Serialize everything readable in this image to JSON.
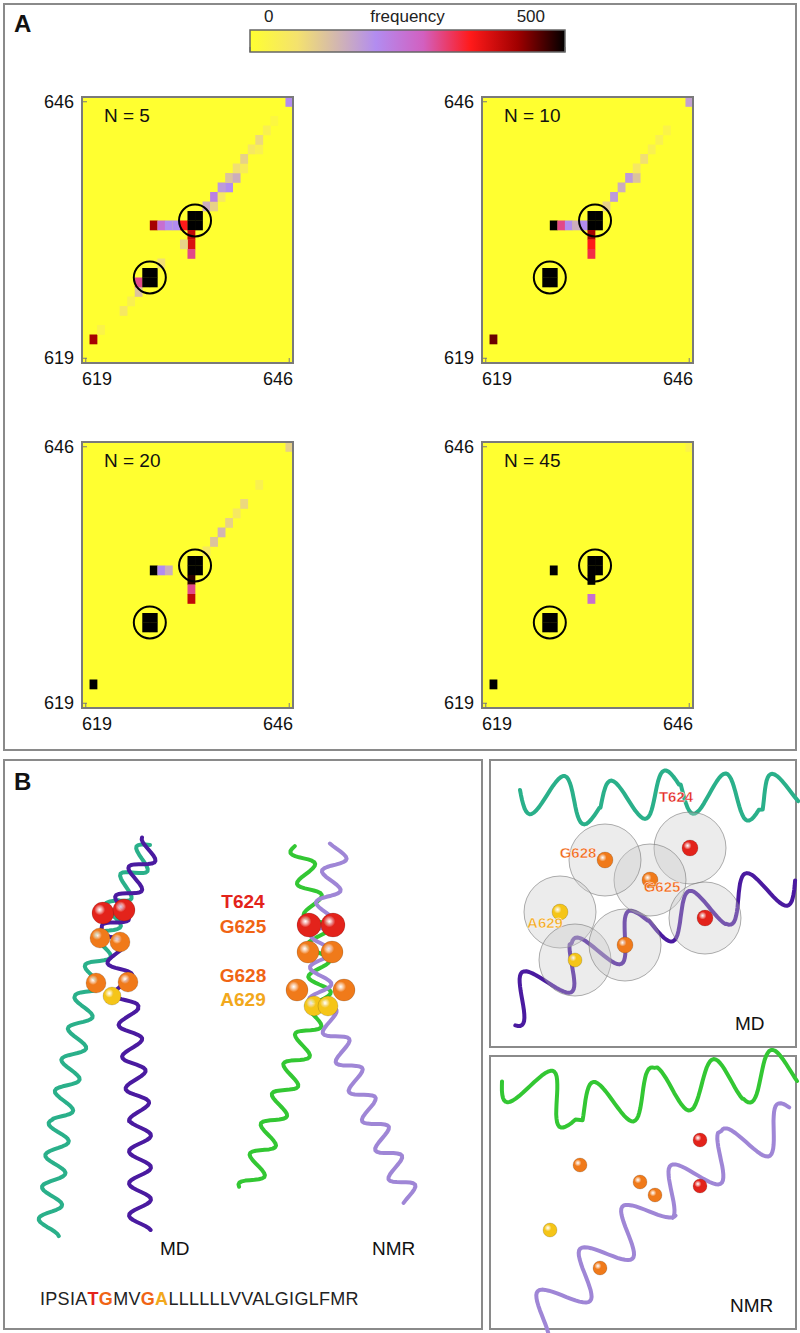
{
  "panel_labels": [
    "A",
    "B"
  ],
  "color_bar": {
    "label": "frequency",
    "range": [
      0,
      500
    ],
    "ticks": [
      0,
      500
    ]
  },
  "chart_data": [
    {
      "type": "heatmap",
      "title": "N = 5",
      "xlim": [
        618.5,
        646.5
      ],
      "ylim": [
        618.5,
        646.5
      ],
      "xticks": [
        619,
        646
      ],
      "yticks": [
        619,
        646
      ],
      "cells": [
        [
          620,
          621,
          420
        ],
        [
          621,
          622,
          30
        ],
        [
          624,
          624,
          60
        ],
        [
          625,
          625,
          40
        ],
        [
          626,
          626,
          120
        ],
        [
          626,
          627,
          300
        ],
        [
          627,
          627,
          500
        ],
        [
          628,
          627,
          500
        ],
        [
          627,
          628,
          500
        ],
        [
          628,
          628,
          500
        ],
        [
          629,
          629,
          80
        ],
        [
          628,
          633,
          420
        ],
        [
          629,
          633,
          250
        ],
        [
          630,
          633,
          200
        ],
        [
          631,
          633,
          200
        ],
        [
          632,
          633,
          350
        ],
        [
          633,
          633,
          500
        ],
        [
          634,
          633,
          500
        ],
        [
          633,
          634,
          500
        ],
        [
          634,
          634,
          500
        ],
        [
          633,
          632,
          400
        ],
        [
          633,
          631,
          380
        ],
        [
          633,
          630,
          300
        ],
        [
          632,
          631,
          100
        ],
        [
          635,
          635,
          150
        ],
        [
          636,
          635,
          100
        ],
        [
          636,
          636,
          220
        ],
        [
          637,
          636,
          60
        ],
        [
          637,
          637,
          180
        ],
        [
          638,
          637,
          200
        ],
        [
          638,
          638,
          120
        ],
        [
          639,
          638,
          150
        ],
        [
          639,
          639,
          80
        ],
        [
          640,
          639,
          50
        ],
        [
          640,
          640,
          100
        ],
        [
          641,
          641,
          60
        ],
        [
          642,
          641,
          40
        ],
        [
          642,
          642,
          90
        ],
        [
          643,
          643,
          40
        ],
        [
          644,
          644,
          20
        ],
        [
          646,
          646,
          200
        ]
      ],
      "circled_contacts": [
        [
          627.5,
          627.5
        ],
        [
          633.5,
          633.5
        ]
      ]
    },
    {
      "type": "heatmap",
      "title": "N = 10",
      "xlim": [
        618.5,
        646.5
      ],
      "ylim": [
        618.5,
        646.5
      ],
      "xticks": [
        619,
        646
      ],
      "yticks": [
        619,
        646
      ],
      "cells": [
        [
          620,
          621,
          450
        ],
        [
          627,
          627,
          500
        ],
        [
          628,
          627,
          500
        ],
        [
          627,
          628,
          500
        ],
        [
          628,
          628,
          500
        ],
        [
          628,
          633,
          500
        ],
        [
          629,
          633,
          300
        ],
        [
          630,
          633,
          200
        ],
        [
          631,
          633,
          150
        ],
        [
          632,
          633,
          200
        ],
        [
          633,
          633,
          500
        ],
        [
          634,
          633,
          500
        ],
        [
          633,
          634,
          500
        ],
        [
          634,
          634,
          500
        ],
        [
          633,
          632,
          420
        ],
        [
          633,
          631,
          350
        ],
        [
          633,
          630,
          330
        ],
        [
          635,
          635,
          100
        ],
        [
          636,
          636,
          180
        ],
        [
          637,
          637,
          150
        ],
        [
          638,
          638,
          180
        ],
        [
          639,
          638,
          120
        ],
        [
          639,
          639,
          60
        ],
        [
          640,
          640,
          80
        ],
        [
          641,
          641,
          40
        ],
        [
          642,
          642,
          40
        ],
        [
          643,
          643,
          30
        ],
        [
          646,
          646,
          170
        ]
      ],
      "circled_contacts": [
        [
          627.5,
          627.5
        ],
        [
          633.5,
          633.5
        ]
      ]
    },
    {
      "type": "heatmap",
      "title": "N = 20",
      "xlim": [
        618.5,
        646.5
      ],
      "ylim": [
        618.5,
        646.5
      ],
      "xticks": [
        619,
        646
      ],
      "yticks": [
        619,
        646
      ],
      "cells": [
        [
          620,
          621,
          500
        ],
        [
          627,
          627,
          500
        ],
        [
          628,
          627,
          500
        ],
        [
          627,
          628,
          500
        ],
        [
          628,
          628,
          500
        ],
        [
          628,
          633,
          500
        ],
        [
          629,
          633,
          200
        ],
        [
          630,
          633,
          150
        ],
        [
          633,
          633,
          500
        ],
        [
          634,
          633,
          500
        ],
        [
          633,
          634,
          500
        ],
        [
          634,
          634,
          500
        ],
        [
          633,
          632,
          480
        ],
        [
          633,
          631,
          300
        ],
        [
          633,
          630,
          400
        ],
        [
          635,
          635,
          60
        ],
        [
          636,
          636,
          120
        ],
        [
          637,
          637,
          140
        ],
        [
          638,
          638,
          100
        ],
        [
          639,
          639,
          60
        ],
        [
          640,
          640,
          90
        ],
        [
          642,
          642,
          40
        ],
        [
          646,
          646,
          100
        ]
      ],
      "circled_contacts": [
        [
          627.5,
          627.5
        ],
        [
          633.5,
          633.5
        ]
      ]
    },
    {
      "type": "heatmap",
      "title": "N = 45",
      "xlim": [
        618.5,
        646.5
      ],
      "ylim": [
        618.5,
        646.5
      ],
      "xticks": [
        619,
        646
      ],
      "yticks": [
        619,
        646
      ],
      "cells": [
        [
          620,
          621,
          500
        ],
        [
          627,
          627,
          500
        ],
        [
          628,
          627,
          500
        ],
        [
          627,
          628,
          500
        ],
        [
          628,
          628,
          500
        ],
        [
          628,
          633,
          500
        ],
        [
          633,
          633,
          500
        ],
        [
          634,
          633,
          500
        ],
        [
          633,
          634,
          500
        ],
        [
          634,
          634,
          500
        ],
        [
          633,
          632,
          500
        ],
        [
          633,
          630,
          250
        ],
        [
          646,
          646,
          30
        ]
      ],
      "circled_contacts": [
        [
          627.5,
          627.5
        ],
        [
          633.5,
          633.5
        ]
      ]
    }
  ],
  "panel_b": {
    "residues": [
      {
        "label": "T624",
        "color": "#e3231b"
      },
      {
        "label": "G625",
        "color": "#f06414"
      },
      {
        "label": "G628",
        "color": "#f06414"
      },
      {
        "label": "A629",
        "color": "#f2a81c"
      }
    ],
    "structures": [
      "MD",
      "NMR"
    ],
    "zoom_labels": [
      "MD",
      "NMR"
    ],
    "sequence": [
      {
        "text": "IPSIA"
      },
      {
        "text": "T",
        "color": "#e3231b"
      },
      {
        "text": "G",
        "color": "#f06414"
      },
      {
        "text": "MV"
      },
      {
        "text": "G",
        "color": "#f06414"
      },
      {
        "text": "A",
        "color": "#f2a81c"
      },
      {
        "text": "LLLLLLVVALGIGLFMR"
      }
    ]
  }
}
